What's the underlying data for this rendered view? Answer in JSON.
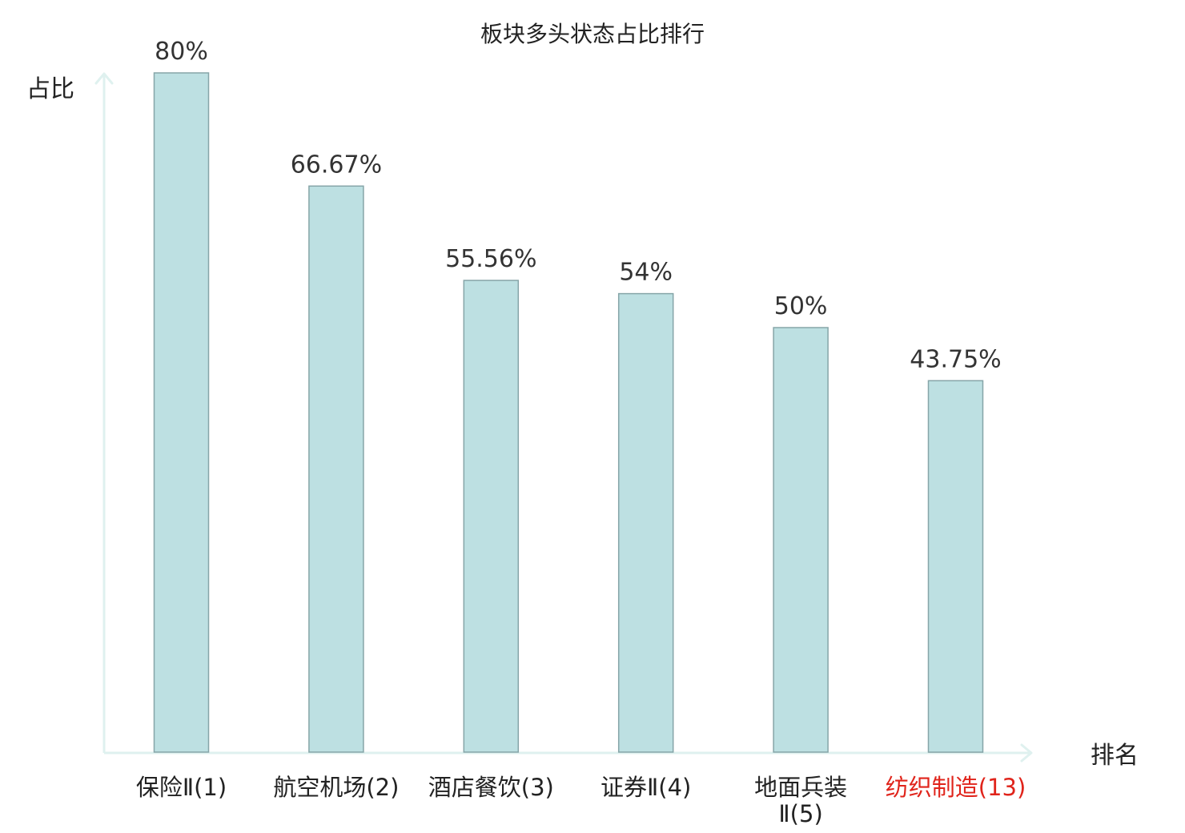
{
  "chart_data": {
    "type": "bar",
    "title": "板块多头状态占比排行",
    "xlabel": "排名",
    "ylabel": "占比",
    "categories": [
      [
        "保险Ⅱ(1)"
      ],
      [
        "航空机场(2)"
      ],
      [
        "酒店餐饮(3)"
      ],
      [
        "证券Ⅱ(4)"
      ],
      [
        "地面兵装",
        "Ⅱ(5)"
      ],
      [
        "纺织制造(13)"
      ]
    ],
    "values": [
      80,
      66.67,
      55.56,
      54,
      50,
      43.75
    ],
    "value_labels": [
      "80%",
      "66.67%",
      "55.56%",
      "54%",
      "50%",
      "43.75%"
    ],
    "highlight_index": 5,
    "ylim": [
      0,
      80
    ],
    "grid": false,
    "colors": {
      "bar_fill": "#bde0e2",
      "bar_stroke": "#86a5a8",
      "axis": "#dff1ef",
      "highlight_text": "#e0241b",
      "text": "#222222"
    }
  }
}
